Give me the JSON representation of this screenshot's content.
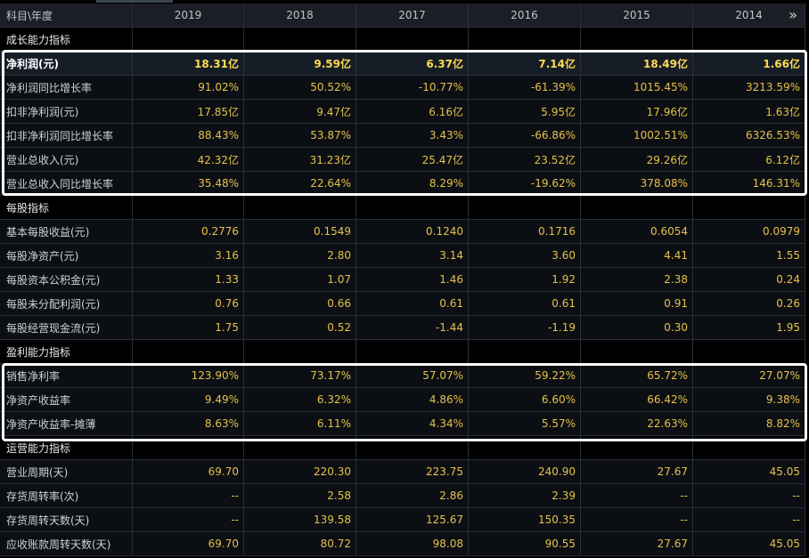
{
  "header": {
    "label": "科目\\年度",
    "years": [
      "2019",
      "2018",
      "2017",
      "2016",
      "2015",
      "2014"
    ],
    "expand_icon": "double-chevron-right-icon"
  },
  "sections": [
    {
      "title": "成长能力指标",
      "rows": [
        {
          "name": "净利润(元)",
          "values": [
            "18.31亿",
            "9.59亿",
            "6.37亿",
            "7.14亿",
            "18.49亿",
            "1.66亿"
          ]
        },
        {
          "name": "净利润同比增长率",
          "values": [
            "91.02%",
            "50.52%",
            "-10.77%",
            "-61.39%",
            "1015.45%",
            "3213.59%"
          ]
        },
        {
          "name": "扣非净利润(元)",
          "values": [
            "17.85亿",
            "9.47亿",
            "6.16亿",
            "5.95亿",
            "17.96亿",
            "1.63亿"
          ]
        },
        {
          "name": "扣非净利润同比增长率",
          "values": [
            "88.43%",
            "53.87%",
            "3.43%",
            "-66.86%",
            "1002.51%",
            "6326.53%"
          ]
        },
        {
          "name": "营业总收入(元)",
          "values": [
            "42.32亿",
            "31.23亿",
            "25.47亿",
            "23.52亿",
            "29.26亿",
            "6.12亿"
          ]
        },
        {
          "name": "营业总收入同比增长率",
          "values": [
            "35.48%",
            "22.64%",
            "8.29%",
            "-19.62%",
            "378.08%",
            "146.31%"
          ]
        }
      ]
    },
    {
      "title": "每股指标",
      "rows": [
        {
          "name": "基本每股收益(元)",
          "values": [
            "0.2776",
            "0.1549",
            "0.1240",
            "0.1716",
            "0.6054",
            "0.0979"
          ]
        },
        {
          "name": "每股净资产(元)",
          "values": [
            "3.16",
            "2.80",
            "3.14",
            "3.60",
            "4.41",
            "1.55"
          ]
        },
        {
          "name": "每股资本公积金(元)",
          "values": [
            "1.33",
            "1.07",
            "1.46",
            "1.92",
            "2.38",
            "0.24"
          ]
        },
        {
          "name": "每股未分配利润(元)",
          "values": [
            "0.76",
            "0.66",
            "0.61",
            "0.61",
            "0.91",
            "0.26"
          ]
        },
        {
          "name": "每股经营现金流(元)",
          "values": [
            "1.75",
            "0.52",
            "-1.44",
            "-1.19",
            "0.30",
            "1.95"
          ]
        }
      ]
    },
    {
      "title": "盈利能力指标",
      "rows": [
        {
          "name": "销售净利率",
          "values": [
            "123.90%",
            "73.17%",
            "57.07%",
            "59.22%",
            "65.72%",
            "27.07%"
          ]
        },
        {
          "name": "净资产收益率",
          "values": [
            "9.49%",
            "6.32%",
            "4.86%",
            "6.60%",
            "66.42%",
            "9.38%"
          ]
        },
        {
          "name": "净资产收益率-摊薄",
          "values": [
            "8.63%",
            "6.11%",
            "4.34%",
            "5.57%",
            "22.63%",
            "8.82%"
          ]
        }
      ]
    },
    {
      "title": "运营能力指标",
      "rows": [
        {
          "name": "营业周期(天)",
          "values": [
            "69.70",
            "220.30",
            "223.75",
            "240.90",
            "27.67",
            "45.05"
          ]
        },
        {
          "name": "存货周转率(次)",
          "values": [
            "--",
            "2.58",
            "2.86",
            "2.39",
            "--",
            "--"
          ]
        },
        {
          "name": "存货周转天数(天)",
          "values": [
            "--",
            "139.58",
            "125.67",
            "150.35",
            "--",
            "--"
          ]
        },
        {
          "name": "应收账款周转天数(天)",
          "values": [
            "69.70",
            "80.72",
            "98.08",
            "90.55",
            "27.67",
            "45.05"
          ]
        }
      ]
    }
  ],
  "colors": {
    "value": "#e8c04a",
    "label": "#cfd3d8",
    "highlight_box": "#ffffff",
    "header_bg": "#1b1f25"
  }
}
